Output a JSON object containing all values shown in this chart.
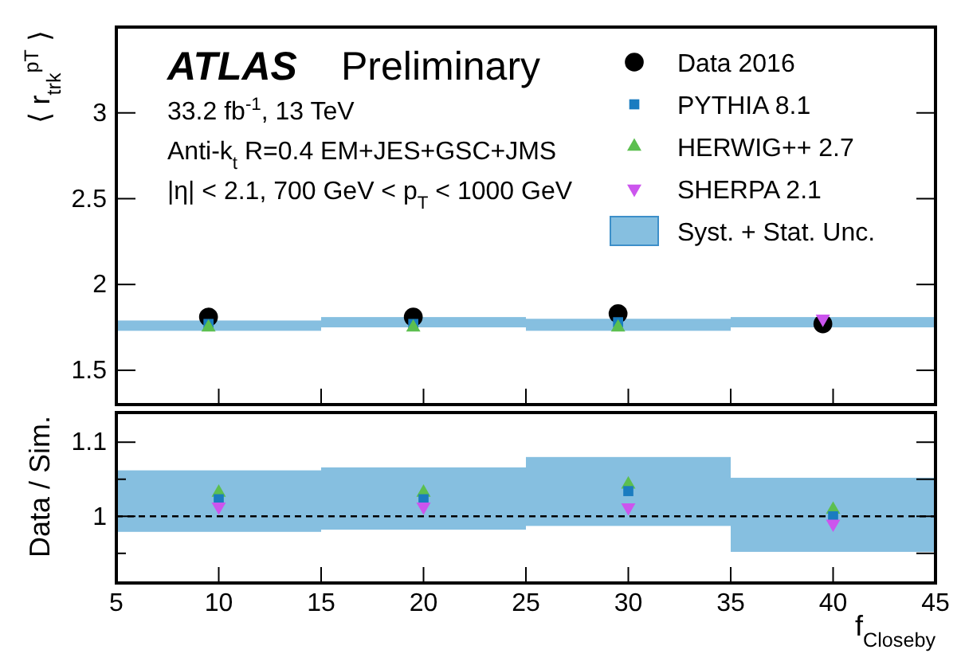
{
  "chart_data": [
    {
      "type": "scatter",
      "ylabel": "⟨ r$_{trk}$$^{pT}$ ⟩",
      "annotations": [
        "ATLAS",
        "Preliminary",
        "33.2 fb$^{-1}$, 13 TeV",
        "Anti-k$_{t}$ R=0.4 EM+JES+GSC+JMS",
        "|η| < 2.1, 700 GeV < p$_{T}$ < 1000 GeV"
      ],
      "xlim": [
        5,
        45
      ],
      "xticks": [
        5,
        10,
        15,
        20,
        25,
        30,
        35,
        40,
        45
      ],
      "ylim": [
        1.3,
        3.5
      ],
      "yticks": [
        1.5,
        2,
        2.5,
        3
      ],
      "tick_labels": "y",
      "legend": "top right",
      "series": [
        {
          "name": "Data 2016",
          "marker": "circle",
          "color": "#000000",
          "x": [
            9.5,
            19.5,
            29.5,
            39.5
          ],
          "values": [
            1.81,
            1.81,
            1.83,
            1.77
          ]
        },
        {
          "name": "PYTHIA 8.1",
          "marker": "square",
          "color": "#1a7cc0",
          "x": [
            9.5,
            19.5,
            29.5
          ],
          "values": [
            1.77,
            1.77,
            1.78
          ]
        },
        {
          "name": "HERWIG++ 2.7",
          "marker": "triangle",
          "color": "#5cbf4f",
          "x": [
            9.5,
            19.5,
            29.5
          ],
          "values": [
            1.75,
            1.75,
            1.75
          ]
        },
        {
          "name": "SHERPA 2.1",
          "marker": "triangle-down",
          "color": "#cc55ee",
          "x": [
            39.5
          ],
          "values": [
            1.8
          ]
        },
        {
          "name": "Syst. + Stat. Unc.",
          "type": "bar",
          "color": "#86bfe0",
          "x": [
            10,
            20,
            30,
            40
          ],
          "base": [
            1.73,
            1.75,
            1.73,
            1.75
          ],
          "values": [
            0.06,
            0.06,
            0.07,
            0.06
          ]
        }
      ]
    },
    {
      "type": "scatter",
      "xlabel": "f$_{Closeby}$",
      "ylabel": "Data / Sim.",
      "xlim": [
        5,
        45
      ],
      "xticks": [
        5,
        10,
        15,
        20,
        25,
        30,
        35,
        40,
        45
      ],
      "ylim": [
        0.91,
        1.14
      ],
      "yticks": [
        {
          "value": 0.95,
          "label": null
        },
        1,
        {
          "value": 1.05,
          "label": null
        },
        1.1
      ],
      "ref_lines": [
        {
          "axis": "y",
          "value": 1,
          "color": "#000000",
          "line_style": "dashed"
        }
      ],
      "series": [
        {
          "type": "bar",
          "color": "#86bfe0",
          "x": [
            10,
            20,
            30,
            40
          ],
          "base": [
            0.979,
            0.982,
            0.987,
            0.952
          ],
          "values": [
            0.083,
            0.084,
            0.093,
            0.1
          ]
        },
        {
          "marker": "triangle",
          "color": "#5cbf4f",
          "x": [
            10,
            20,
            30,
            40
          ],
          "values": [
            1.032,
            1.032,
            1.043,
            1.009
          ]
        },
        {
          "marker": "square",
          "color": "#1a7cc0",
          "x": [
            10,
            20,
            30,
            40
          ],
          "values": [
            1.023,
            1.023,
            1.034,
            1.0
          ]
        },
        {
          "marker": "triangle-down",
          "color": "#cc55ee",
          "x": [
            10,
            20,
            30,
            40
          ],
          "values": [
            1.013,
            1.013,
            1.012,
            0.99
          ]
        }
      ]
    }
  ]
}
